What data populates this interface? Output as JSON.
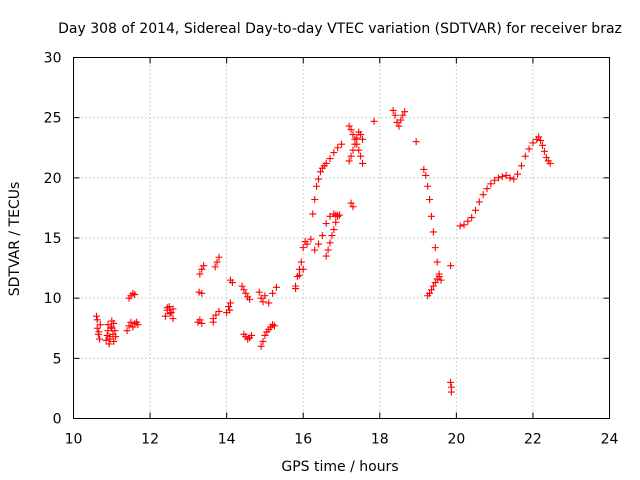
{
  "colors": {
    "series": "#ff0000",
    "axis": "#000000",
    "grid": "#a0a0a0",
    "background": "#ffffff"
  },
  "chart_data": {
    "type": "scatter",
    "title": "Day 308 of 2014, Sidereal Day-to-day VTEC variation (SDTVAR) for receiver braz",
    "xlabel": "GPS time / hours",
    "ylabel": "SDTVAR / TECUs",
    "xlim": [
      10,
      24
    ],
    "ylim": [
      0,
      30
    ],
    "xticks": [
      "10",
      "12",
      "14",
      "16",
      "18",
      "20",
      "22",
      "24"
    ],
    "yticks": [
      "0",
      "5",
      "10",
      "15",
      "20",
      "25",
      "30"
    ],
    "grid": true,
    "marker": "+",
    "series": [
      {
        "name": "SDTVAR",
        "x": [
          10.6,
          10.62,
          10.65,
          10.68,
          10.7,
          10.62,
          10.66,
          10.85,
          10.88,
          10.9,
          10.93,
          10.95,
          10.98,
          11.0,
          11.03,
          11.05,
          11.08,
          11.1,
          10.9,
          10.95,
          11.0,
          11.05,
          11.4,
          11.45,
          11.5,
          11.55,
          11.6,
          11.45,
          11.5,
          11.55,
          11.6,
          11.65,
          11.68,
          12.4,
          12.45,
          12.5,
          12.55,
          12.6,
          12.45,
          12.52,
          12.6,
          13.25,
          13.3,
          13.35,
          13.4,
          13.28,
          13.35,
          13.3,
          13.35,
          13.65,
          13.7,
          13.75,
          13.8,
          13.65,
          13.72,
          13.8,
          14.0,
          14.05,
          14.1,
          14.15,
          14.08,
          14.1,
          14.4,
          14.45,
          14.5,
          14.55,
          14.6,
          14.45,
          14.5,
          14.55,
          14.6,
          14.65,
          14.9,
          14.95,
          15.0,
          15.05,
          15.1,
          15.15,
          15.2,
          15.25,
          14.85,
          14.9,
          14.95,
          15.0,
          15.1,
          15.2,
          15.3,
          15.8,
          15.85,
          15.9,
          15.95,
          16.0,
          16.05,
          15.8,
          15.9,
          16.0,
          16.1,
          16.2,
          16.25,
          16.3,
          16.35,
          16.4,
          16.45,
          16.5,
          16.55,
          16.6,
          16.7,
          16.8,
          16.9,
          17.0,
          16.3,
          16.4,
          16.5,
          16.6,
          16.7,
          16.8,
          16.85,
          16.9,
          16.95,
          16.6,
          16.65,
          16.7,
          16.75,
          16.8,
          16.85,
          16.9,
          17.2,
          17.25,
          17.3,
          17.35,
          17.4,
          17.45,
          17.5,
          17.55,
          17.2,
          17.25,
          17.3,
          17.35,
          17.4,
          17.45,
          17.5,
          17.55,
          17.25,
          17.3,
          17.85,
          18.35,
          18.4,
          18.45,
          18.5,
          18.55,
          18.6,
          18.65,
          18.95,
          19.15,
          19.2,
          19.25,
          19.3,
          19.35,
          19.4,
          19.45,
          19.5,
          19.55,
          19.6,
          19.25,
          19.3,
          19.35,
          19.4,
          19.45,
          19.5,
          19.55,
          19.85,
          19.85,
          19.87,
          19.87,
          20.1,
          20.2,
          20.3,
          20.4,
          20.5,
          20.6,
          20.7,
          20.8,
          20.9,
          21.0,
          21.1,
          21.2,
          21.3,
          21.4,
          21.5,
          21.6,
          21.7,
          21.8,
          21.9,
          22.0,
          22.1,
          22.15,
          22.2,
          22.25,
          22.3,
          22.35,
          22.4,
          22.45
        ],
        "y": [
          8.5,
          7.5,
          7.0,
          6.6,
          7.8,
          8.2,
          7.2,
          6.5,
          6.9,
          7.3,
          6.2,
          6.8,
          7.6,
          8.1,
          7.0,
          6.4,
          7.3,
          6.8,
          7.8,
          6.6,
          7.5,
          7.9,
          7.3,
          7.7,
          8.0,
          7.6,
          7.9,
          10.0,
          10.2,
          10.4,
          10.3,
          8.0,
          7.8,
          8.5,
          9.0,
          9.3,
          8.8,
          8.3,
          9.2,
          8.7,
          9.1,
          8.0,
          12.0,
          12.4,
          12.7,
          10.5,
          10.4,
          8.2,
          7.9,
          8.0,
          12.6,
          13.0,
          13.4,
          8.3,
          8.6,
          8.9,
          8.8,
          9.3,
          11.5,
          11.3,
          9.0,
          9.6,
          11.0,
          10.7,
          10.4,
          10.1,
          9.9,
          7.0,
          6.8,
          6.6,
          6.7,
          6.9,
          6.0,
          6.4,
          6.9,
          7.2,
          7.4,
          7.6,
          7.8,
          7.7,
          10.5,
          10.0,
          9.7,
          10.2,
          9.6,
          10.4,
          10.9,
          10.8,
          11.8,
          12.4,
          13.0,
          14.2,
          14.7,
          11.0,
          11.9,
          12.4,
          14.5,
          14.9,
          17.0,
          18.2,
          19.3,
          19.9,
          20.5,
          20.8,
          21.0,
          21.2,
          21.6,
          22.1,
          22.5,
          22.8,
          14.0,
          14.5,
          15.2,
          16.2,
          16.8,
          17.0,
          16.9,
          16.8,
          16.9,
          13.5,
          14.0,
          14.6,
          15.2,
          15.7,
          16.3,
          16.9,
          24.3,
          24.0,
          23.6,
          23.2,
          22.8,
          22.3,
          21.8,
          21.2,
          21.4,
          21.8,
          22.3,
          22.8,
          23.3,
          23.8,
          23.6,
          23.2,
          17.9,
          17.6,
          24.7,
          25.6,
          25.2,
          24.6,
          24.3,
          24.8,
          25.2,
          25.5,
          23.0,
          20.7,
          20.2,
          19.3,
          18.2,
          16.8,
          15.5,
          14.2,
          13.0,
          12.0,
          11.5,
          10.2,
          10.4,
          10.7,
          11.0,
          11.3,
          11.6,
          11.8,
          12.7,
          3.0,
          2.6,
          2.2,
          16.0,
          16.1,
          16.4,
          16.7,
          17.3,
          18.0,
          18.6,
          19.1,
          19.5,
          19.8,
          20.0,
          20.1,
          20.2,
          20.0,
          19.9,
          20.3,
          21.0,
          21.8,
          22.4,
          22.9,
          23.2,
          23.4,
          23.1,
          22.7,
          22.2,
          21.7,
          21.4,
          21.2
        ]
      }
    ]
  }
}
